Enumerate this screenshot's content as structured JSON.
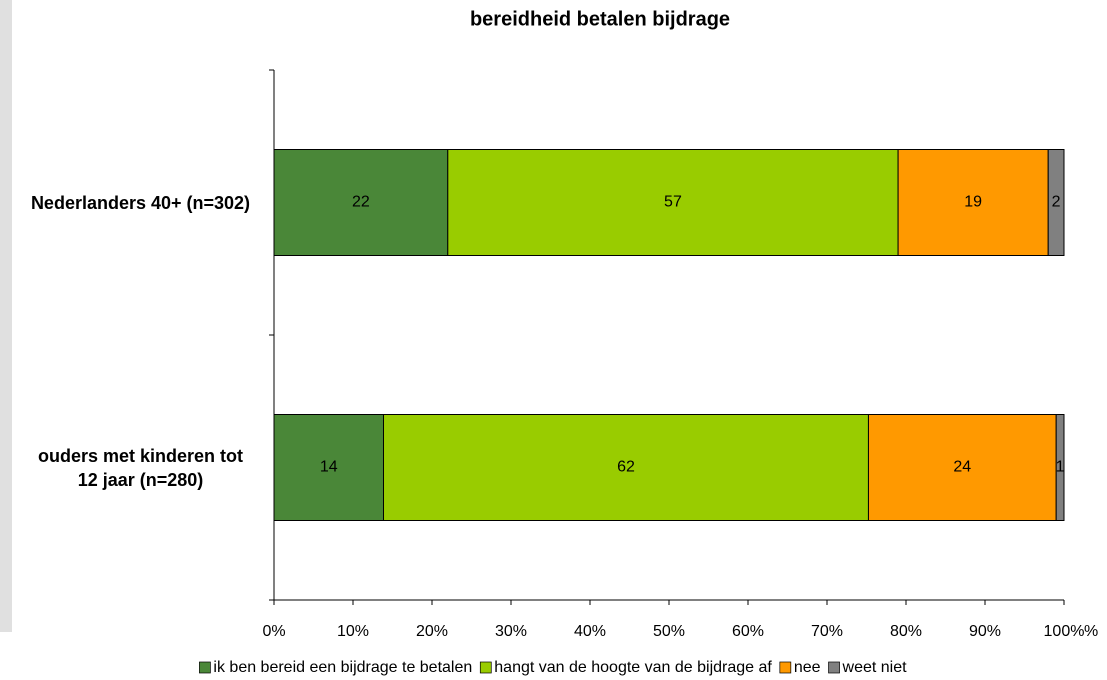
{
  "chart_data": {
    "type": "bar",
    "orientation": "horizontal",
    "stacking": "percent",
    "title": "bereidheid betalen bijdrage",
    "categories": [
      "Nederlanders 40+ (n=302)",
      "ouders met kinderen tot 12 jaar (n=280)"
    ],
    "series": [
      {
        "name": "ik ben bereid een bijdrage te betalen",
        "color": "#4a8738",
        "values": [
          22,
          14
        ]
      },
      {
        "name": "hangt van de hoogte van de bijdrage af",
        "color": "#99cc00",
        "values": [
          57,
          62
        ]
      },
      {
        "name": "nee",
        "color": "#ff9900",
        "values": [
          19,
          24
        ]
      },
      {
        "name": "weet niet",
        "color": "#808080",
        "values": [
          2,
          1
        ]
      }
    ],
    "xlabel": "%",
    "xlim": [
      0,
      100
    ],
    "xticks": [
      {
        "value": 0,
        "label": "0%"
      },
      {
        "value": 10,
        "label": "10%"
      },
      {
        "value": 20,
        "label": "20%"
      },
      {
        "value": 30,
        "label": "30%"
      },
      {
        "value": 40,
        "label": "40%"
      },
      {
        "value": 50,
        "label": "50%"
      },
      {
        "value": 60,
        "label": "60%"
      },
      {
        "value": 70,
        "label": "70%"
      },
      {
        "value": 80,
        "label": "80%"
      },
      {
        "value": 90,
        "label": "90%"
      },
      {
        "value": 100,
        "label": "100%"
      }
    ],
    "legend": "bottom",
    "grid": false
  }
}
